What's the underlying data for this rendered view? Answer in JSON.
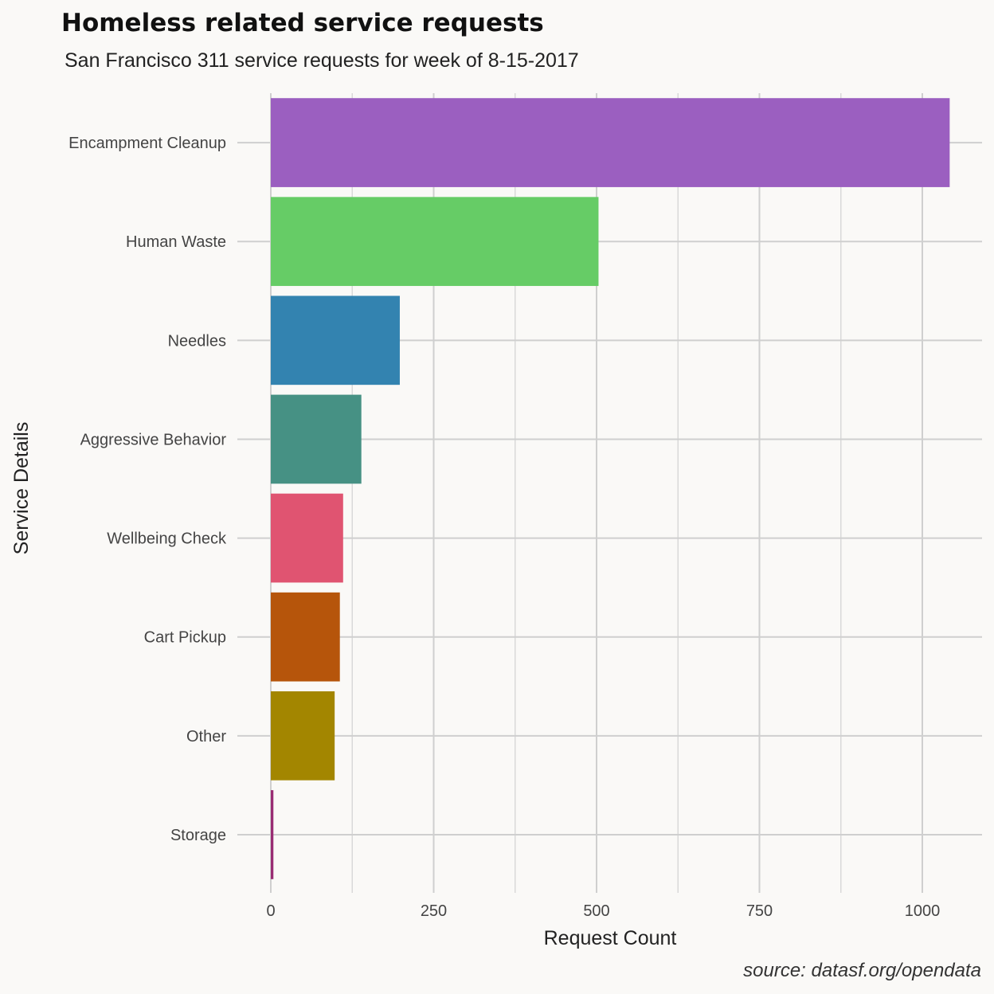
{
  "chart_data": {
    "type": "bar",
    "orientation": "horizontal",
    "title": "Homeless related service requests",
    "subtitle": "San Francisco 311 service requests for week of 8-15-2017",
    "xlabel": "Request Count",
    "ylabel": "Service Details",
    "caption": "source: datasf.org/opendata",
    "categories": [
      "Encampment Cleanup",
      "Human Waste",
      "Needles",
      "Aggressive Behavior",
      "Wellbeing Check",
      "Cart Pickup",
      "Other",
      "Storage"
    ],
    "values": [
      1042,
      503,
      198,
      139,
      111,
      106,
      98,
      4
    ],
    "colors": [
      "#9b5fc0",
      "#66cc66",
      "#3383b0",
      "#469184",
      "#e05471",
      "#b6550b",
      "#a38600",
      "#992c73"
    ],
    "xlim": [
      0,
      1095
    ],
    "xticks": [
      0,
      250,
      500,
      750,
      1000
    ],
    "xtick_labels": [
      "0",
      "250",
      "500",
      "750",
      "1000"
    ],
    "grid": true,
    "legend": "none"
  }
}
